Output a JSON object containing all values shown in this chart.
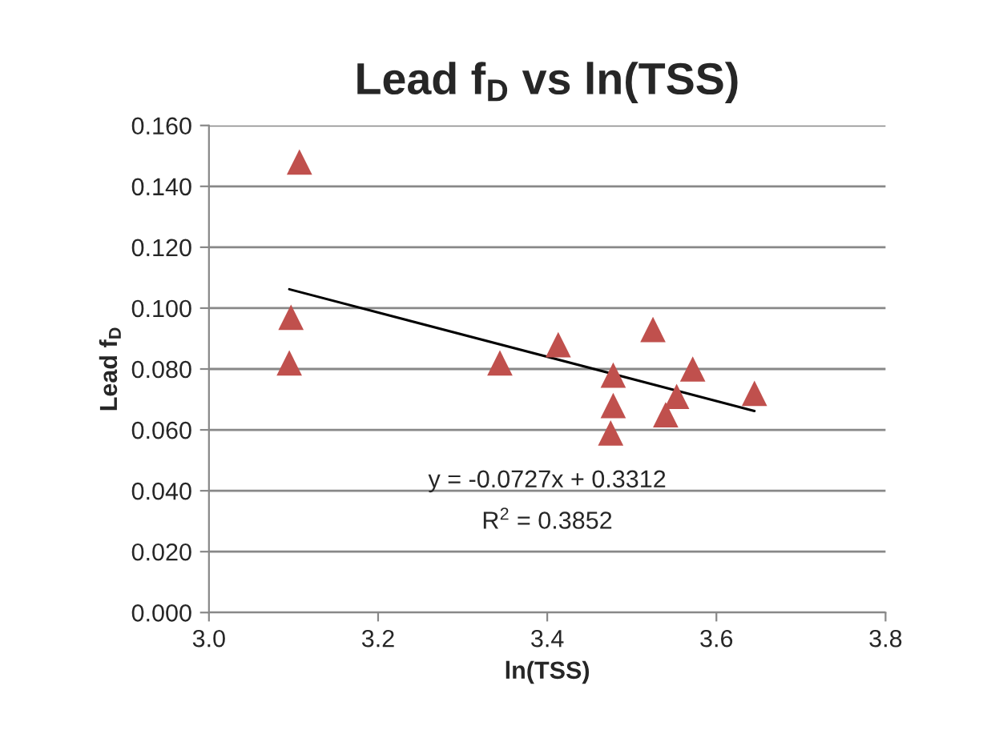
{
  "chart_data": {
    "type": "scatter",
    "title": "Lead f$_{D}$ vs ln(TSS)",
    "xlabel": "ln(TSS)",
    "ylabel": "Lead f$_{D}$",
    "series": [
      {
        "color": "#c0504d",
        "marker": "triangle",
        "x": [
          3.107,
          3.097,
          3.095,
          3.344,
          3.413,
          3.478,
          3.478,
          3.475,
          3.525,
          3.572,
          3.553,
          3.54,
          3.645
        ],
        "values": [
          0.148,
          0.097,
          0.082,
          0.082,
          0.088,
          0.078,
          0.068,
          0.059,
          0.093,
          0.08,
          0.071,
          0.065,
          0.072
        ]
      },
      {
        "type": "line",
        "color": "#000000",
        "marker": "none",
        "x": [
          3.095,
          3.645
        ],
        "values": [
          0.1062,
          0.0662
        ]
      }
    ],
    "annotations": [
      "y = -0.0727x + 0.3312",
      "R$^{2}$ = 0.3852"
    ],
    "xlim": [
      3.0,
      3.8
    ],
    "xticks": [
      {
        "value": 3.0,
        "label": "3.0"
      },
      {
        "value": 3.2,
        "label": "3.2"
      },
      {
        "value": 3.4,
        "label": "3.4"
      },
      {
        "value": 3.6,
        "label": "3.6"
      },
      {
        "value": 3.8,
        "label": "3.8"
      }
    ],
    "ylim": [
      0,
      0.16
    ],
    "yticks": [
      {
        "value": 0,
        "label": "0.000"
      },
      {
        "value": 0.02,
        "label": "0.020"
      },
      {
        "value": 0.04,
        "label": "0.040"
      },
      {
        "value": 0.06,
        "label": "0.060"
      },
      {
        "value": 0.08,
        "label": "0.080"
      },
      {
        "value": 0.1,
        "label": "0.100"
      },
      {
        "value": 0.12,
        "label": "0.120"
      },
      {
        "value": 0.14,
        "label": "0.140"
      },
      {
        "value": 0.16,
        "label": "0.160"
      }
    ],
    "grid": "y",
    "legend": false
  }
}
